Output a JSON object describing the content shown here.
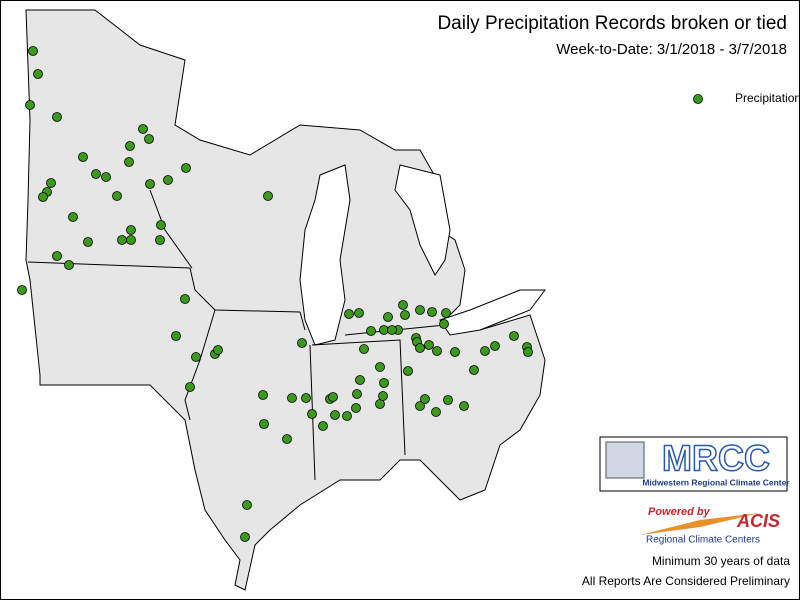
{
  "title": "Daily Precipitation Records broken or tied",
  "subtitle": "Week-to-Date:  3/1/2018 - 3/7/2018",
  "legend": {
    "label": "Precipitation",
    "color": "#3a9a1a"
  },
  "logo": {
    "name": "MRCC",
    "full_name": "Midwestern Regional Climate Center"
  },
  "acis": {
    "powered": "Powered by",
    "name": "ACIS",
    "tagline": "Regional Climate Centers"
  },
  "notes": [
    "Minimum 30 years of data",
    "All Reports Are Considered Preliminary"
  ]
}
